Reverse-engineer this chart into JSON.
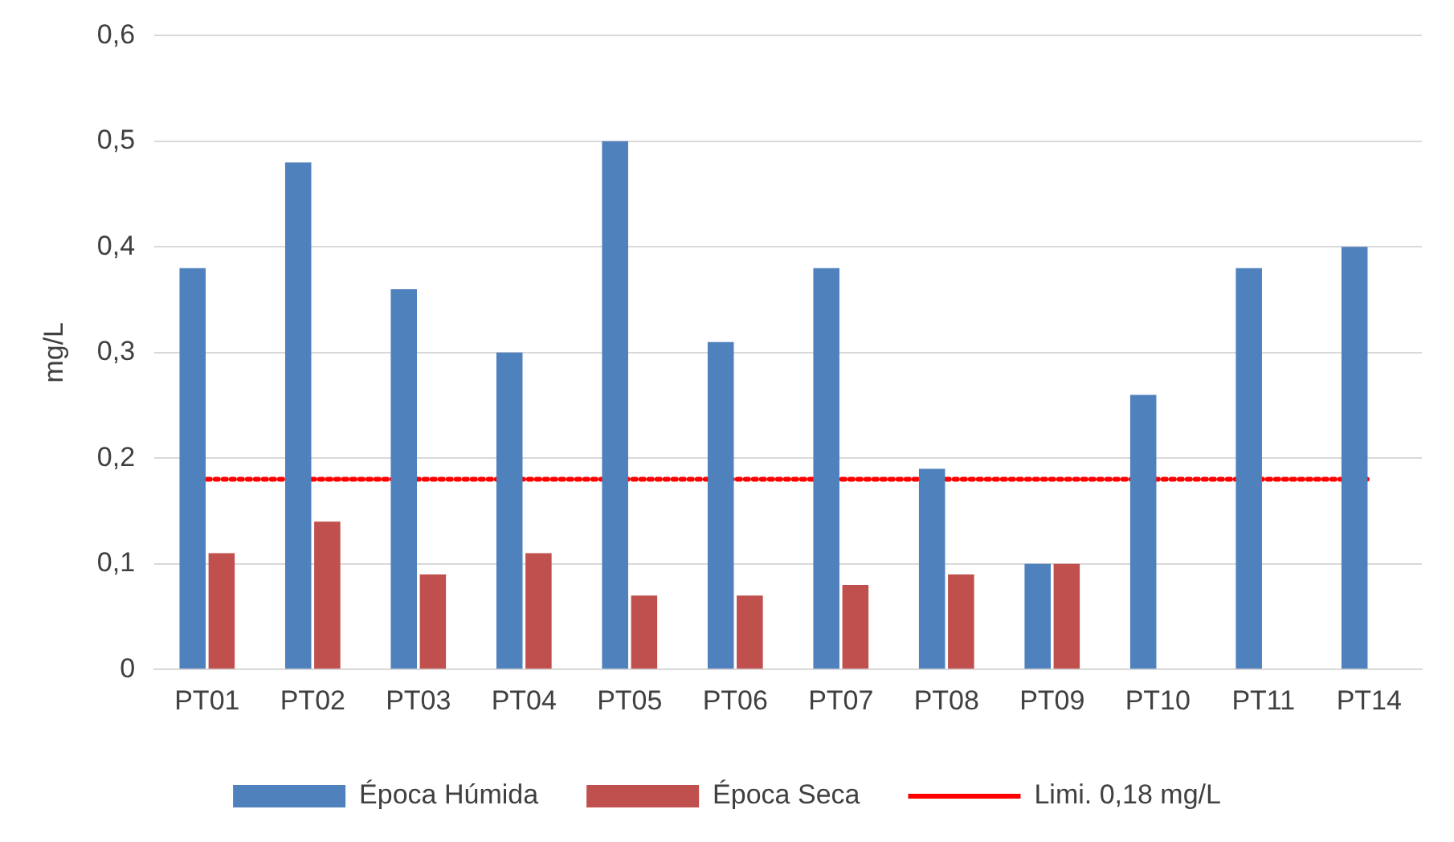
{
  "chart_data": {
    "type": "bar",
    "ylabel": "mg/L",
    "categories": [
      "PT01",
      "PT02",
      "PT03",
      "PT04",
      "PT05",
      "PT06",
      "PT07",
      "PT08",
      "PT09",
      "PT10",
      "PT11",
      "PT14"
    ],
    "series": [
      {
        "name": "Época Húmida",
        "color": "#4f81bd",
        "values": [
          0.38,
          0.48,
          0.36,
          0.3,
          0.5,
          0.31,
          0.38,
          0.19,
          0.1,
          0.26,
          0.38,
          0.4
        ]
      },
      {
        "name": "Época Seca",
        "color": "#c0504d",
        "values": [
          0.11,
          0.14,
          0.09,
          0.11,
          0.07,
          0.07,
          0.08,
          0.09,
          0.1,
          null,
          null,
          null
        ]
      }
    ],
    "ylim": [
      0,
      0.6
    ],
    "yticks": [
      0,
      {
        "value": 0.1,
        "label": "0,1"
      },
      {
        "value": 0.2,
        "label": "0,2"
      },
      {
        "value": 0.3,
        "label": "0,3"
      },
      {
        "value": 0.4,
        "label": "0,4"
      },
      {
        "value": 0.5,
        "label": "0,5"
      },
      {
        "value": 0.6,
        "label": "0,6"
      }
    ],
    "ref_lines": [
      {
        "axis": "y",
        "value": 0.18,
        "label": "Limi. 0,18 mg/L",
        "color": "#ff0000",
        "line_style": "dotted"
      }
    ],
    "grid": "y",
    "legend": "bottom"
  }
}
